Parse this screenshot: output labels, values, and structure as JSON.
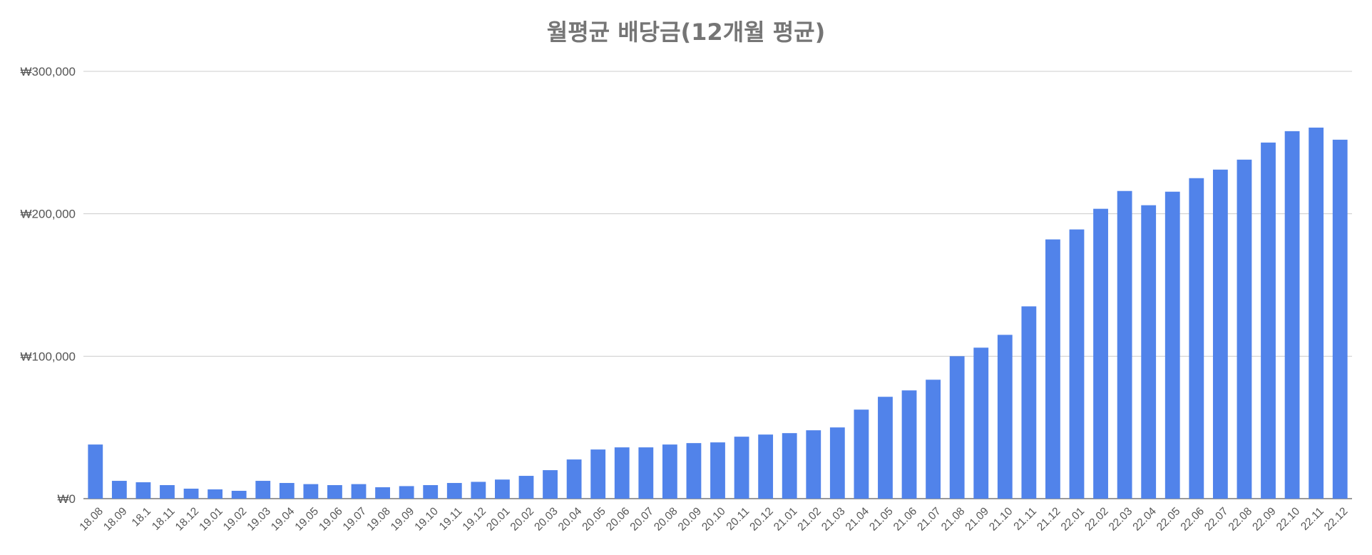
{
  "chart_data": {
    "type": "bar",
    "title": "월평균 배당금(12개월 평균)",
    "xlabel": "",
    "ylabel": "",
    "ylim": [
      0,
      300000
    ],
    "y_ticks": [
      0,
      100000,
      200000,
      300000
    ],
    "y_tick_labels": [
      "₩0",
      "₩100,000",
      "₩200,000",
      "₩300,000"
    ],
    "grid": true,
    "legend": "none",
    "bar_color": "#5183ea",
    "categories": [
      "18.08",
      "18.09",
      "18.1",
      "18.11",
      "18.12",
      "19.01",
      "19.02",
      "19.03",
      "19.04",
      "19.05",
      "19.06",
      "19.07",
      "19.08",
      "19.09",
      "19.10",
      "19.11",
      "19.12",
      "20.01",
      "20.02",
      "20.03",
      "20.04",
      "20.05",
      "20.06",
      "20.07",
      "20.08",
      "20.09",
      "20.10",
      "20.11",
      "20.12",
      "21.01",
      "21.02",
      "21.03",
      "21.04",
      "21.05",
      "21.06",
      "21.07",
      "21.08",
      "21.09",
      "21.10",
      "21.11",
      "21.12",
      "22.01",
      "22.02",
      "22.03",
      "22.04",
      "22.05",
      "22.06",
      "22.07",
      "22.08",
      "22.09",
      "22.10",
      "22.11",
      "22.12"
    ],
    "values": [
      38000,
      12500,
      11500,
      9500,
      7000,
      6500,
      5500,
      12500,
      11000,
      10200,
      9500,
      10200,
      8000,
      8800,
      9500,
      11000,
      11800,
      13400,
      16000,
      20000,
      27500,
      34500,
      36000,
      36000,
      38000,
      39000,
      39500,
      43500,
      45000,
      46000,
      48000,
      50000,
      62500,
      71500,
      76000,
      83500,
      100000,
      106000,
      115000,
      135000,
      182000,
      189000,
      203500,
      216000,
      206000,
      215500,
      225000,
      231000,
      238000,
      250000,
      258000,
      260500,
      252000
    ]
  }
}
